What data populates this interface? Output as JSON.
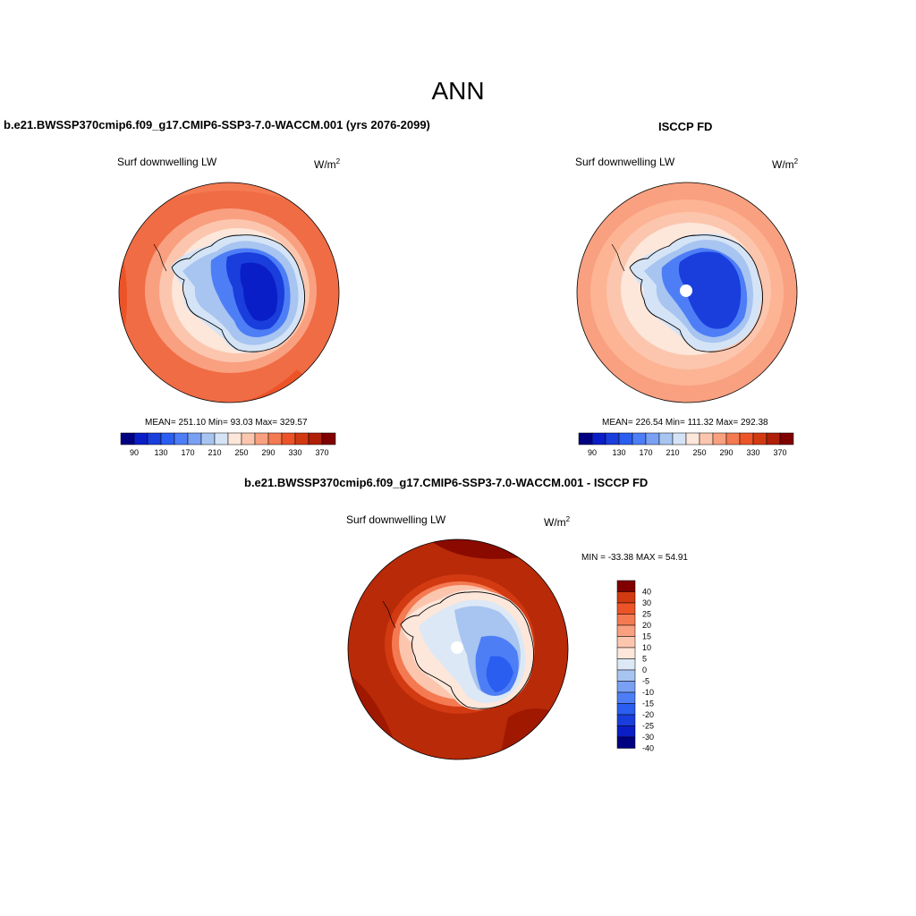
{
  "title": "ANN",
  "colors": {
    "model_bar": [
      "#000080",
      "#0a1ec8",
      "#1a3edc",
      "#2a5ef0",
      "#4e7ef6",
      "#7aa0f4",
      "#a8c4f0",
      "#d4e4f6",
      "#fde6da",
      "#fcc6ae",
      "#f9a080",
      "#f47a52",
      "#ec5428",
      "#d23a12",
      "#b02008",
      "#800000"
    ],
    "diff_bar": [
      "#000080",
      "#0a1ec8",
      "#1a3edc",
      "#2a5ef0",
      "#4e7ef6",
      "#7aa0f4",
      "#a8c4f0",
      "#dce8f6",
      "#fde6da",
      "#fcc6ae",
      "#f9a080",
      "#f47a52",
      "#ec5428",
      "#d23a12",
      "#800000"
    ]
  },
  "panels": [
    {
      "title": "b.e21.BWSSP370cmip6.f09_g17.CMIP6-SSP3-7.0-WACCM.001 (yrs 2076-2099)",
      "variable": "Surf downwelling LW",
      "units": "W/m",
      "units_exp": "2",
      "stats": "MEAN= 251.10  Min=  93.03  Max= 329.57",
      "ticks": [
        "90",
        "130",
        "170",
        "210",
        "250",
        "290",
        "330",
        "370"
      ]
    },
    {
      "title": "ISCCP FD",
      "variable": "Surf downwelling LW",
      "units": "W/m",
      "units_exp": "2",
      "stats": "MEAN= 226.54  Min= 111.32  Max= 292.38",
      "ticks": [
        "90",
        "130",
        "170",
        "210",
        "250",
        "290",
        "330",
        "370"
      ]
    },
    {
      "title": "b.e21.BWSSP370cmip6.f09_g17.CMIP6-SSP3-7.0-WACCM.001 - ISCCP FD",
      "variable": "Surf downwelling LW",
      "units": "W/m",
      "units_exp": "2",
      "stats": "MIN = -33.38 MAX =  54.91",
      "ticks": [
        "40",
        "30",
        "25",
        "20",
        "15",
        "10",
        "5",
        "0",
        "-5",
        "-10",
        "-15",
        "-20",
        "-25",
        "-30",
        "-40"
      ]
    }
  ]
}
